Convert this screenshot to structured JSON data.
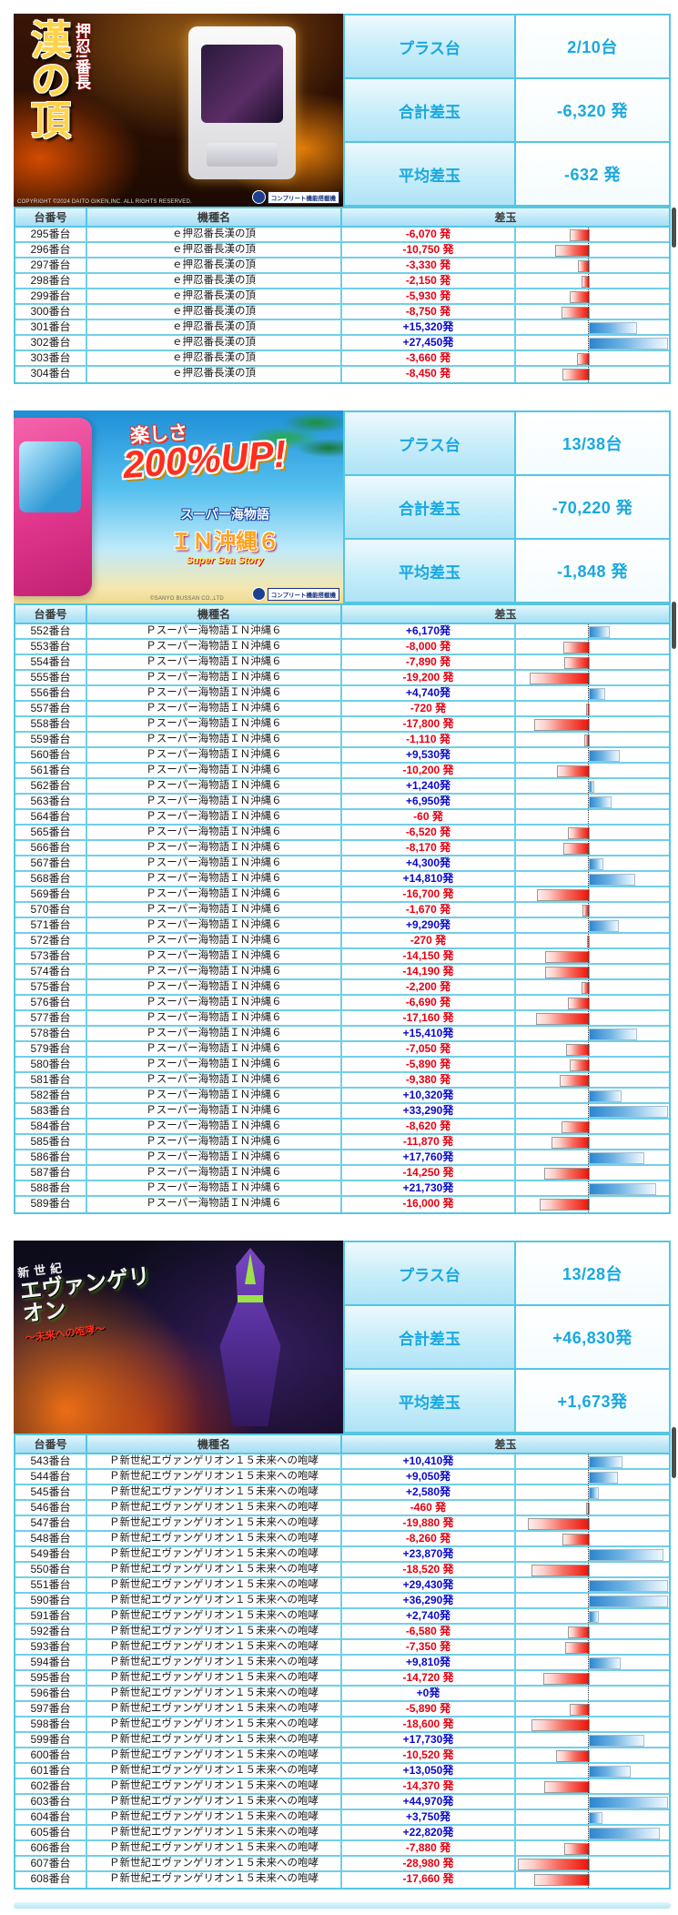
{
  "colors": {
    "border": "#55c6e2",
    "accent_text": "#19a8e0",
    "positive_value": "#0a0acd",
    "negative_value": "#e60012"
  },
  "summary_labels": {
    "plus": "プラス台",
    "total": "合計差玉",
    "avg": "平均差玉"
  },
  "table_headers": {
    "no": "台番号",
    "model": "機種名",
    "diff": "差玉"
  },
  "sections": [
    {
      "banner": {
        "theme": "banchou",
        "title_sub": "押忍!番長",
        "title_main": "漢の頂",
        "copyright": "COPYRIGHT ©2024 DAITO GIKEN,INC. ALL RIGHTS RESERVED.",
        "badge": "コンプリート機能搭載機"
      },
      "summary": {
        "plus": "2/10台",
        "total": "-6,320 発",
        "avg": "-632 発"
      },
      "model": "ｅ押忍番長漢の頂",
      "rows": [
        [
          "295番台",
          "-6,070 発"
        ],
        [
          "296番台",
          "-10,750 発"
        ],
        [
          "297番台",
          "-3,330 発"
        ],
        [
          "298番台",
          "-2,150 発"
        ],
        [
          "299番台",
          "-5,930 発"
        ],
        [
          "300番台",
          "-8,750 発"
        ],
        [
          "301番台",
          "+15,320発"
        ],
        [
          "302番台",
          "+27,450発"
        ],
        [
          "303番台",
          "-3,660 発"
        ],
        [
          "304番台",
          "-8,450 発"
        ]
      ]
    },
    {
      "banner": {
        "theme": "umi",
        "line1": "楽しさ",
        "line2": "200%UP!",
        "logo1": "スーパー海物語",
        "logo2": "ＩＮ沖縄６",
        "logo3": "Super Sea Story",
        "copyright": "©SANYO BUSSAN CO.,LTD",
        "badge": "コンプリート機能搭載機"
      },
      "summary": {
        "plus": "13/38台",
        "total": "-70,220 発",
        "avg": "-1,848 発"
      },
      "model": "Ｐスーパー海物語ＩＮ沖縄６",
      "rows": [
        [
          "552番台",
          "+6,170発"
        ],
        [
          "553番台",
          "-8,000 発"
        ],
        [
          "554番台",
          "-7,890 発"
        ],
        [
          "555番台",
          "-19,200 発"
        ],
        [
          "556番台",
          "+4,740発"
        ],
        [
          "557番台",
          "-720 発"
        ],
        [
          "558番台",
          "-17,800 発"
        ],
        [
          "559番台",
          "-1,110 発"
        ],
        [
          "560番台",
          "+9,530発"
        ],
        [
          "561番台",
          "-10,200 発"
        ],
        [
          "562番台",
          "+1,240発"
        ],
        [
          "563番台",
          "+6,950発"
        ],
        [
          "564番台",
          "-60 発"
        ],
        [
          "565番台",
          "-6,520 発"
        ],
        [
          "566番台",
          "-8,170 発"
        ],
        [
          "567番台",
          "+4,300発"
        ],
        [
          "568番台",
          "+14,810発"
        ],
        [
          "569番台",
          "-16,700 発"
        ],
        [
          "570番台",
          "-1,670 発"
        ],
        [
          "571番台",
          "+9,290発"
        ],
        [
          "572番台",
          "-270 発"
        ],
        [
          "573番台",
          "-14,150 発"
        ],
        [
          "574番台",
          "-14,190 発"
        ],
        [
          "575番台",
          "-2,200 発"
        ],
        [
          "576番台",
          "-6,690 発"
        ],
        [
          "577番台",
          "-17,160 発"
        ],
        [
          "578番台",
          "+15,410発"
        ],
        [
          "579番台",
          "-7,050 発"
        ],
        [
          "580番台",
          "-5,890 発"
        ],
        [
          "581番台",
          "-9,380 発"
        ],
        [
          "582番台",
          "+10,320発"
        ],
        [
          "583番台",
          "+33,290発"
        ],
        [
          "584番台",
          "-8,620 発"
        ],
        [
          "585番台",
          "-11,870 発"
        ],
        [
          "586番台",
          "+17,760発"
        ],
        [
          "587番台",
          "-14,250 発"
        ],
        [
          "588番台",
          "+21,730発"
        ],
        [
          "589番台",
          "-16,000 発"
        ]
      ]
    },
    {
      "banner": {
        "theme": "eva",
        "logo_top": "新世紀",
        "logo_main": "エヴァンゲリオン",
        "sub": "〜未来への咆哮〜"
      },
      "summary": {
        "plus": "13/28台",
        "total": "+46,830発",
        "avg": "+1,673発"
      },
      "model": "Ｐ新世紀エヴァンゲリオン１５未来への咆哮",
      "rows": [
        [
          "543番台",
          "+10,410発"
        ],
        [
          "544番台",
          "+9,050発"
        ],
        [
          "545番台",
          "+2,580発"
        ],
        [
          "546番台",
          "-460 発"
        ],
        [
          "547番台",
          "-19,880 発"
        ],
        [
          "548番台",
          "-8,260 発"
        ],
        [
          "549番台",
          "+23,870発"
        ],
        [
          "550番台",
          "-18,520 発"
        ],
        [
          "551番台",
          "+29,430発"
        ],
        [
          "590番台",
          "+36,290発"
        ],
        [
          "591番台",
          "+2,740発"
        ],
        [
          "592番台",
          "-6,580 発"
        ],
        [
          "593番台",
          "-7,350 発"
        ],
        [
          "594番台",
          "+9,810発"
        ],
        [
          "595番台",
          "-14,720 発"
        ],
        [
          "596番台",
          "+0発"
        ],
        [
          "597番台",
          "-5,890 発"
        ],
        [
          "598番台",
          "-18,600 発"
        ],
        [
          "599番台",
          "+17,730発"
        ],
        [
          "600番台",
          "-10,520 発"
        ],
        [
          "601番台",
          "+13,050発"
        ],
        [
          "602番台",
          "-14,370 発"
        ],
        [
          "603番台",
          "+44,970発"
        ],
        [
          "604番台",
          "+3,750発"
        ],
        [
          "605番台",
          "+22,820発"
        ],
        [
          "606番台",
          "-7,880 発"
        ],
        [
          "607番台",
          "-28,980 発"
        ],
        [
          "608番台",
          "-17,660 発"
        ]
      ]
    }
  ]
}
